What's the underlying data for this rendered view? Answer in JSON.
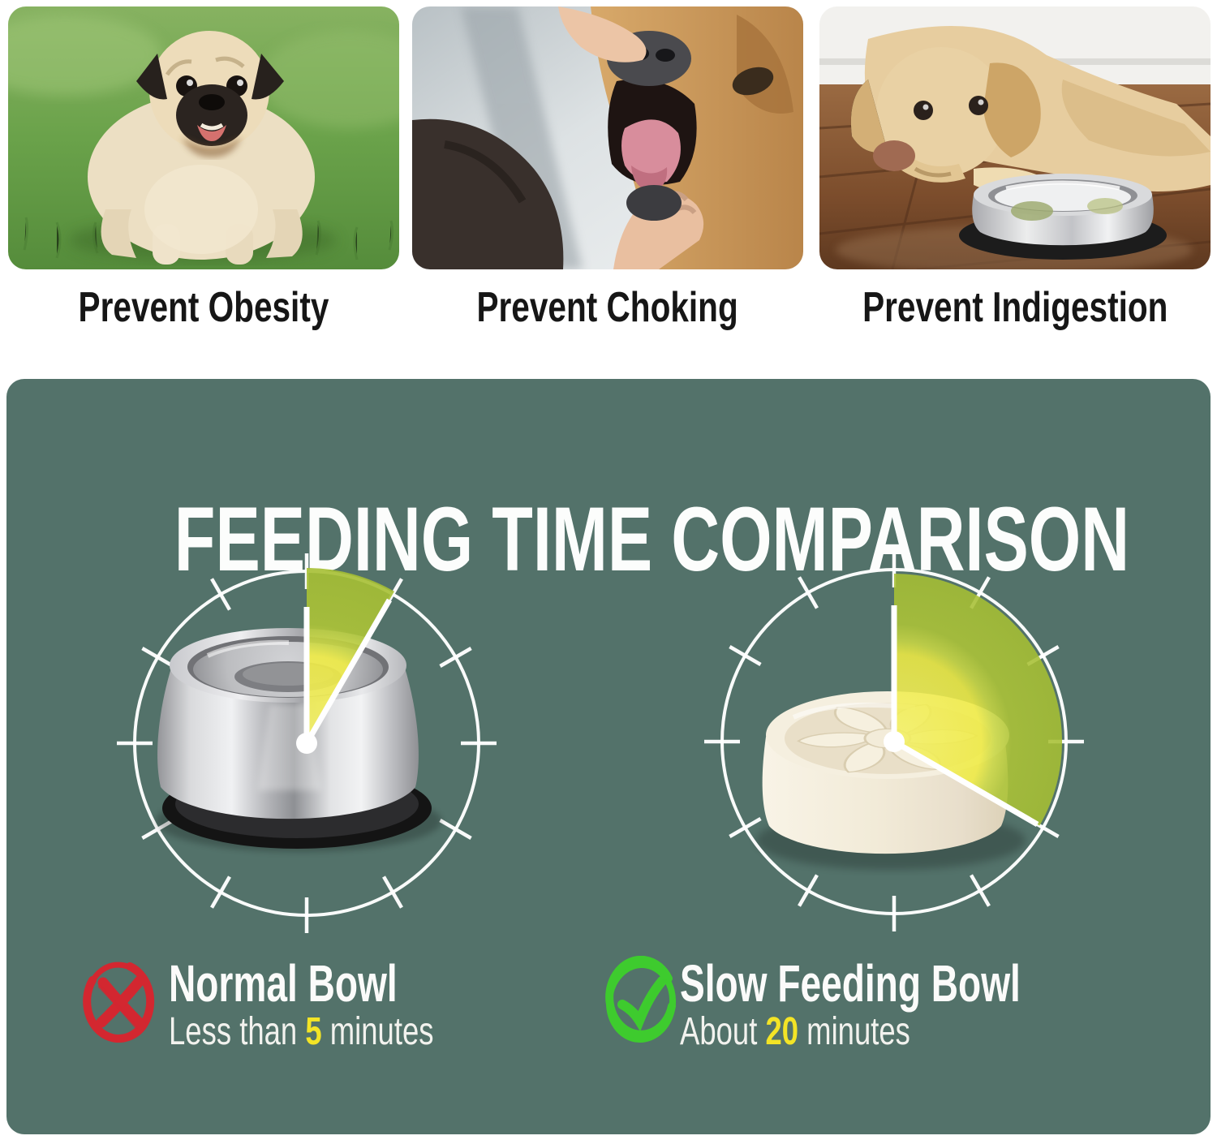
{
  "benefits": {
    "items": [
      {
        "caption": "Prevent Obesity"
      },
      {
        "caption": "Prevent Choking"
      },
      {
        "caption": "Prevent Indigestion"
      }
    ]
  },
  "comparison": {
    "title": "FEEDING TIME COMPARISON",
    "panel_color": "#53726a",
    "dial_ticks": 12,
    "dial_minutes_total": 60,
    "highlight_color": "#f3e426",
    "wedge_inner_color": "#efec4a",
    "wedge_outer_color": "#a7c034",
    "items": [
      {
        "name": "Normal Bowl",
        "time_prefix": "Less than ",
        "time_value": "5",
        "time_suffix": " minutes",
        "minutes": 5,
        "wedge_degrees": 30,
        "verdict": "cross-icon",
        "icon_color": "#d32730"
      },
      {
        "name": "Slow Feeding Bowl",
        "time_prefix": "About ",
        "time_value": "20",
        "time_suffix": " minutes",
        "minutes": 20,
        "wedge_degrees": 120,
        "verdict": "check-icon",
        "icon_color": "#3ecb2e"
      }
    ]
  }
}
